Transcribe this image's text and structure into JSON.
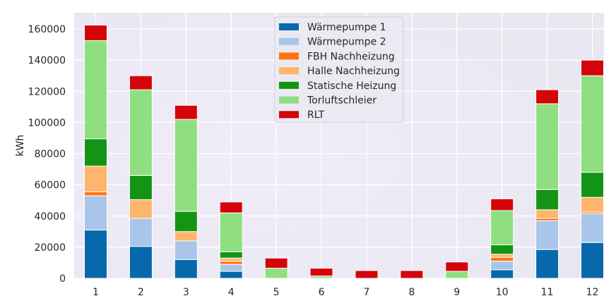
{
  "chart_data": {
    "type": "bar",
    "stacked": true,
    "title": "",
    "xlabel": "",
    "ylabel": "kWh",
    "ylim": [
      0,
      170000
    ],
    "yticks": [
      0,
      20000,
      40000,
      60000,
      80000,
      100000,
      120000,
      140000,
      160000
    ],
    "ytick_labels": [
      "0",
      "20000",
      "40000",
      "60000",
      "80000",
      "100000",
      "120000",
      "140000",
      "160000"
    ],
    "categories": [
      "1",
      "2",
      "3",
      "4",
      "5",
      "6",
      "7",
      "8",
      "9",
      "10",
      "11",
      "12"
    ],
    "grid": true,
    "legend_position": "upper center",
    "series": [
      {
        "name": "Wärmepumpe 1",
        "color": "#0868ac",
        "values": [
          31000,
          20500,
          12000,
          4500,
          0,
          0,
          0,
          0,
          0,
          5500,
          18500,
          23000
        ]
      },
      {
        "name": "Wärmepumpe 2",
        "color": "#a9c5ea",
        "values": [
          22000,
          18000,
          12000,
          4500,
          0,
          0,
          0,
          0,
          0,
          5500,
          18500,
          18500
        ]
      },
      {
        "name": "FBH Nachheizung",
        "color": "#ff7311",
        "values": [
          2500,
          0,
          0,
          2000,
          0,
          0,
          0,
          0,
          0,
          2500,
          1500,
          1000
        ]
      },
      {
        "name": "Halle Nachheizung",
        "color": "#ffb56b",
        "values": [
          16500,
          12000,
          6000,
          2000,
          0,
          0,
          0,
          0,
          0,
          2000,
          5500,
          9500
        ]
      },
      {
        "name": "Statische Heizung",
        "color": "#149414",
        "values": [
          17500,
          15500,
          13000,
          4000,
          0,
          0,
          0,
          0,
          0,
          6000,
          13000,
          16000
        ]
      },
      {
        "name": "Torluftschleier",
        "color": "#8fdf80",
        "values": [
          63000,
          55000,
          59000,
          25000,
          6500,
          1500,
          0,
          0,
          4500,
          22000,
          55000,
          62000
        ]
      },
      {
        "name": "RLT",
        "color": "#d4050a",
        "values": [
          10000,
          9000,
          9000,
          7000,
          6500,
          5000,
          5000,
          5000,
          6000,
          7500,
          9000,
          10000
        ]
      }
    ]
  },
  "legend": {
    "items": [
      {
        "label": "Wärmepumpe 1",
        "color": "#0868ac"
      },
      {
        "label": "Wärmepumpe 2",
        "color": "#a9c5ea"
      },
      {
        "label": "FBH Nachheizung",
        "color": "#ff7311"
      },
      {
        "label": "Halle Nachheizung",
        "color": "#ffb56b"
      },
      {
        "label": "Statische Heizung",
        "color": "#149414"
      },
      {
        "label": "Torluftschleier",
        "color": "#8fdf80"
      },
      {
        "label": "RLT",
        "color": "#d4050a"
      }
    ]
  },
  "style": {
    "plot_bg": "#eaeaf2",
    "grid_color": "#ffffff",
    "text_color": "#262626"
  }
}
